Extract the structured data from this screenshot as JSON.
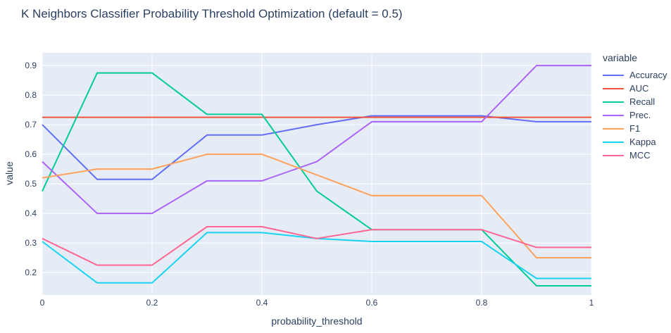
{
  "header": {
    "title": "K Neighbors Classifier Probability Threshold Optimization (default = 0.5)"
  },
  "chart_data": {
    "type": "line",
    "title": "K Neighbors Classifier Probability Threshold Optimization (default = 0.5)",
    "xlabel": "probability_threshold",
    "ylabel": "value",
    "legend_title": "variable",
    "legend_position": "right",
    "grid": true,
    "plot_bgcolor": "#e5ecf6",
    "grid_color": "#ffffff",
    "text_color": "#2a3f5f",
    "xlim": [
      0,
      1
    ],
    "ylim": [
      0.124,
      0.943
    ],
    "x_tick_values": [
      0,
      0.2,
      0.4,
      0.6,
      0.8,
      1
    ],
    "x_tick_labels": [
      "0",
      "0.2",
      "0.4",
      "0.6",
      "0.8",
      "1"
    ],
    "y_tick_values": [
      0.2,
      0.3,
      0.4,
      0.5,
      0.6,
      0.7,
      0.8,
      0.9
    ],
    "y_tick_labels": [
      "0.2",
      "0.3",
      "0.4",
      "0.5",
      "0.6",
      "0.7",
      "0.8",
      "0.9"
    ],
    "x": [
      0,
      0.1,
      0.2,
      0.3,
      0.4,
      0.5,
      0.6,
      0.7,
      0.8,
      0.9,
      1.0
    ],
    "series": [
      {
        "name": "Accuracy",
        "color": "#636efa",
        "values": [
          0.7,
          0.515,
          0.515,
          0.665,
          0.665,
          0.7,
          0.73,
          0.73,
          0.73,
          0.71,
          0.71
        ]
      },
      {
        "name": "AUC",
        "color": "#ef553b",
        "values": [
          0.725,
          0.725,
          0.725,
          0.725,
          0.725,
          0.725,
          0.725,
          0.725,
          0.725,
          0.725,
          0.725
        ]
      },
      {
        "name": "Recall",
        "color": "#00cc96",
        "values": [
          0.475,
          0.875,
          0.875,
          0.735,
          0.735,
          0.475,
          0.345,
          0.345,
          0.345,
          0.155,
          0.155
        ]
      },
      {
        "name": "Prec.",
        "color": "#ab63fa",
        "values": [
          0.575,
          0.4,
          0.4,
          0.51,
          0.51,
          0.575,
          0.71,
          0.71,
          0.71,
          0.9,
          0.9
        ]
      },
      {
        "name": "F1",
        "color": "#ffa15a",
        "values": [
          0.52,
          0.55,
          0.55,
          0.6,
          0.6,
          0.53,
          0.46,
          0.46,
          0.46,
          0.25,
          0.25
        ]
      },
      {
        "name": "Kappa",
        "color": "#19d3f3",
        "values": [
          0.305,
          0.165,
          0.165,
          0.335,
          0.335,
          0.315,
          0.305,
          0.305,
          0.305,
          0.18,
          0.18
        ]
      },
      {
        "name": "MCC",
        "color": "#ff6692",
        "values": [
          0.315,
          0.225,
          0.225,
          0.355,
          0.355,
          0.315,
          0.345,
          0.345,
          0.345,
          0.285,
          0.285
        ]
      }
    ]
  }
}
